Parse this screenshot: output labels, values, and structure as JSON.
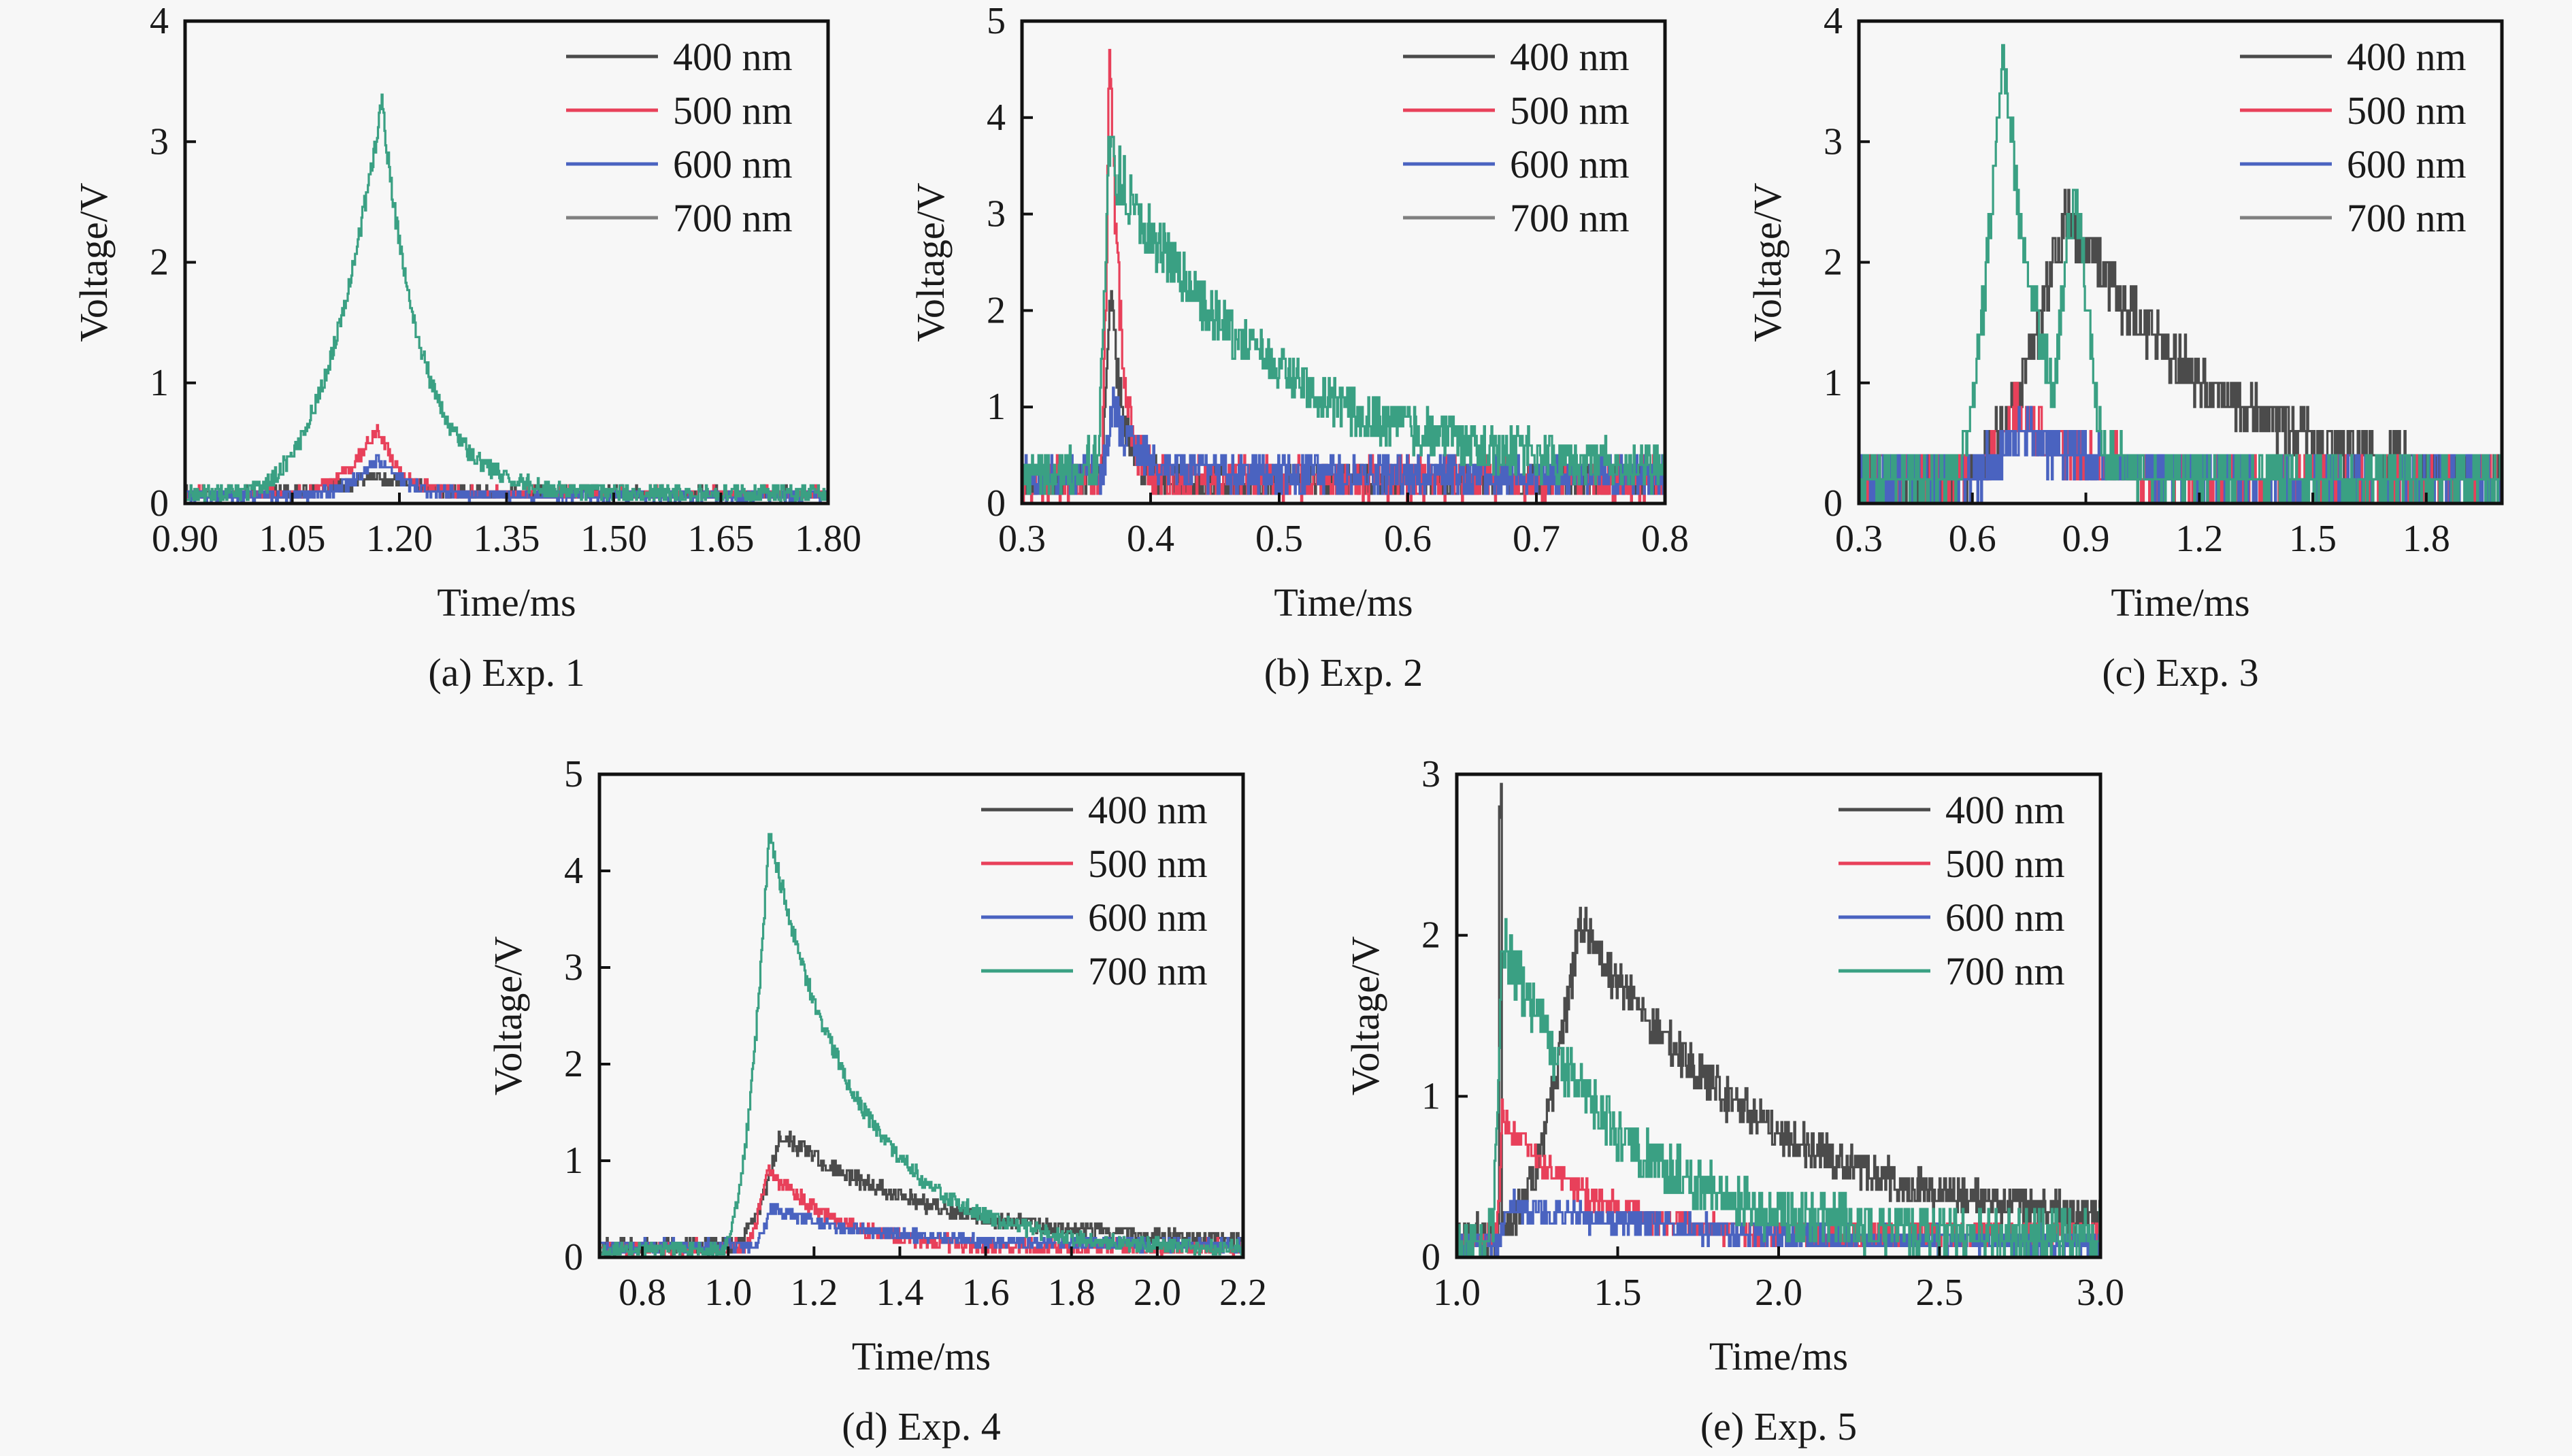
{
  "figure": {
    "background": "#f7f7f7",
    "series_colors": {
      "400 nm": "#4b4b4b",
      "500 nm": "#e8405a",
      "600 nm": "#4a63c0",
      "700 nm": "#3aa083"
    },
    "legend_700_color_override_panels_abc": "#808080"
  },
  "chart_data": [
    {
      "id": "a",
      "type": "line",
      "caption": "(a) Exp. 1",
      "title": "",
      "xlabel": "Time/ms",
      "ylabel": "Voltage/V",
      "xlim": [
        0.9,
        1.8
      ],
      "ylim": [
        0,
        4
      ],
      "xticks": [
        "0.90",
        "1.05",
        "1.20",
        "1.35",
        "1.50",
        "1.65",
        "1.80"
      ],
      "xtick_values": [
        0.9,
        1.05,
        1.2,
        1.35,
        1.5,
        1.65,
        1.8
      ],
      "yticks": [
        "0",
        "1",
        "2",
        "3",
        "4"
      ],
      "ytick_values": [
        0,
        1,
        2,
        3,
        4
      ],
      "legend": {
        "position": "top-right",
        "entries": [
          {
            "label": "400 nm",
            "color": "#4b4b4b"
          },
          {
            "label": "500 nm",
            "color": "#e8405a"
          },
          {
            "label": "600 nm",
            "color": "#4a63c0"
          },
          {
            "label": "700 nm",
            "color": "#808080"
          }
        ]
      },
      "series": [
        {
          "name": "400 nm",
          "color": "#4b4b4b",
          "peak_time": 1.17,
          "peak_value": 0.15,
          "onset": 0.97,
          "rise": 0.05,
          "decay": 0.06,
          "baseline": 0.08,
          "noise": 0.05,
          "step": 0.05
        },
        {
          "name": "500 nm",
          "color": "#e8405a",
          "peak_time": 1.17,
          "peak_value": 0.55,
          "onset": 1.05,
          "rise": 0.03,
          "decay": 0.03,
          "baseline": 0.08,
          "noise": 0.05,
          "step": 0.05
        },
        {
          "name": "600 nm",
          "color": "#4a63c0",
          "peak_time": 1.17,
          "peak_value": 0.3,
          "onset": 1.05,
          "rise": 0.03,
          "decay": 0.04,
          "baseline": 0.06,
          "noise": 0.05,
          "step": 0.05
        },
        {
          "name": "700 nm",
          "color": "#3aa083",
          "peak_time": 1.175,
          "peak_value": 3.25,
          "onset": 0.96,
          "rise": 0.045,
          "decay": 0.055,
          "baseline": 0.08,
          "noise": 0.07,
          "step": 0.03
        }
      ]
    },
    {
      "id": "b",
      "type": "line",
      "caption": "(b) Exp. 2",
      "title": "",
      "xlabel": "Time/ms",
      "ylabel": "Voltage/V",
      "xlim": [
        0.3,
        0.8
      ],
      "ylim": [
        0,
        5
      ],
      "xticks": [
        "0.3",
        "0.4",
        "0.5",
        "0.6",
        "0.7",
        "0.8"
      ],
      "xtick_values": [
        0.3,
        0.4,
        0.5,
        0.6,
        0.7,
        0.8
      ],
      "yticks": [
        "0",
        "1",
        "2",
        "3",
        "4",
        "5"
      ],
      "ytick_values": [
        0,
        1,
        2,
        3,
        4,
        5
      ],
      "legend": {
        "position": "top-right",
        "entries": [
          {
            "label": "400 nm",
            "color": "#4b4b4b"
          },
          {
            "label": "500 nm",
            "color": "#e8405a"
          },
          {
            "label": "600 nm",
            "color": "#4a63c0"
          },
          {
            "label": "700 nm",
            "color": "#808080"
          }
        ]
      },
      "series": [
        {
          "name": "400 nm",
          "color": "#4b4b4b",
          "peak_time": 0.368,
          "peak_value": 2.0,
          "onset": 0.36,
          "rise": 0.004,
          "decay": 0.01,
          "baseline": 0.25,
          "noise": 0.2,
          "step": 0.1
        },
        {
          "name": "500 nm",
          "color": "#e8405a",
          "peak_time": 0.368,
          "peak_value": 4.7,
          "onset": 0.36,
          "rise": 0.003,
          "decay": 0.008,
          "baseline": 0.25,
          "noise": 0.22,
          "step": 0.1
        },
        {
          "name": "600 nm",
          "color": "#4a63c0",
          "peak_time": 0.37,
          "peak_value": 0.7,
          "onset": 0.36,
          "rise": 0.004,
          "decay": 0.02,
          "baseline": 0.3,
          "noise": 0.2,
          "step": 0.1
        },
        {
          "name": "700 nm",
          "color": "#3aa083",
          "peak_time": 0.367,
          "peak_value": 3.3,
          "onset": 0.355,
          "rise": 0.004,
          "decay": 0.12,
          "baseline": 0.3,
          "noise": 0.25,
          "step": 0.1,
          "secondary": {
            "time": 0.43,
            "value": 1.35,
            "width": 0.05
          }
        }
      ]
    },
    {
      "id": "c",
      "type": "line",
      "caption": "(c) Exp. 3",
      "title": "",
      "xlabel": "Time/ms",
      "ylabel": "Voltage/V",
      "xlim": [
        0.3,
        2.0
      ],
      "ylim": [
        0,
        4
      ],
      "xticks": [
        "0.3",
        "0.6",
        "0.9",
        "1.2",
        "1.5",
        "1.8"
      ],
      "xtick_values": [
        0.3,
        0.6,
        0.9,
        1.2,
        1.5,
        1.8
      ],
      "yticks": [
        "0",
        "1",
        "2",
        "3",
        "4"
      ],
      "ytick_values": [
        0,
        1,
        2,
        3,
        4
      ],
      "legend": {
        "position": "top-right",
        "entries": [
          {
            "label": "400 nm",
            "color": "#4b4b4b"
          },
          {
            "label": "500 nm",
            "color": "#e8405a"
          },
          {
            "label": "600 nm",
            "color": "#4a63c0"
          },
          {
            "label": "700 nm",
            "color": "#808080"
          }
        ]
      },
      "series": [
        {
          "name": "400 nm",
          "color": "#4b4b4b",
          "peak_time": 0.85,
          "peak_value": 2.25,
          "onset": 0.56,
          "rise": 0.12,
          "decay": 0.35,
          "baseline": 0.2,
          "noise": 0.2,
          "step": 0.2
        },
        {
          "name": "500 nm",
          "color": "#e8405a",
          "peak_time": 0.72,
          "peak_value": 0.65,
          "onset": 0.55,
          "rise": 0.06,
          "decay": 0.15,
          "baseline": 0.2,
          "noise": 0.2,
          "step": 0.2
        },
        {
          "name": "600 nm",
          "color": "#4a63c0",
          "peak_time": 0.72,
          "peak_value": 0.4,
          "onset": 0.55,
          "rise": 0.06,
          "decay": 0.2,
          "baseline": 0.2,
          "noise": 0.2,
          "step": 0.2
        },
        {
          "name": "700 nm",
          "color": "#3aa083",
          "peak_time": 0.68,
          "peak_value": 3.6,
          "onset": 0.54,
          "rise": 0.05,
          "decay": 0.09,
          "baseline": 0.2,
          "noise": 0.2,
          "step": 0.2,
          "secondary": {
            "time": 0.87,
            "value": 2.3,
            "width": 0.05
          }
        }
      ]
    },
    {
      "id": "d",
      "type": "line",
      "caption": "(d) Exp. 4",
      "title": "",
      "xlabel": "Time/ms",
      "ylabel": "Voltage/V",
      "xlim": [
        0.7,
        2.2
      ],
      "ylim": [
        0,
        5
      ],
      "xticks": [
        "0.8",
        "1.0",
        "1.2",
        "1.4",
        "1.6",
        "1.8",
        "2.0",
        "2.2"
      ],
      "xtick_values": [
        0.8,
        1.0,
        1.2,
        1.4,
        1.6,
        1.8,
        2.0,
        2.2
      ],
      "yticks": [
        "0",
        "1",
        "2",
        "3",
        "4",
        "5"
      ],
      "ytick_values": [
        0,
        1,
        2,
        3,
        4,
        5
      ],
      "legend": {
        "position": "top-right",
        "entries": [
          {
            "label": "400 nm",
            "color": "#4b4b4b"
          },
          {
            "label": "500 nm",
            "color": "#e8405a"
          },
          {
            "label": "600 nm",
            "color": "#4a63c0"
          },
          {
            "label": "700 nm",
            "color": "#3aa083"
          }
        ]
      },
      "series": [
        {
          "name": "400 nm",
          "color": "#4b4b4b",
          "peak_time": 1.12,
          "peak_value": 1.15,
          "onset": 1.0,
          "rise": 0.04,
          "decay": 0.35,
          "baseline": 0.12,
          "noise": 0.08,
          "step": 0.05
        },
        {
          "name": "500 nm",
          "color": "#e8405a",
          "peak_time": 1.09,
          "peak_value": 0.85,
          "onset": 1.03,
          "rise": 0.02,
          "decay": 0.15,
          "baseline": 0.1,
          "noise": 0.08,
          "step": 0.05
        },
        {
          "name": "600 nm",
          "color": "#4a63c0",
          "peak_time": 1.1,
          "peak_value": 0.38,
          "onset": 1.05,
          "rise": 0.02,
          "decay": 0.25,
          "baseline": 0.12,
          "noise": 0.06,
          "step": 0.05
        },
        {
          "name": "700 nm",
          "color": "#3aa083",
          "peak_time": 1.095,
          "peak_value": 4.35,
          "onset": 0.98,
          "rise": 0.035,
          "decay": 0.2,
          "baseline": 0.08,
          "noise": 0.08,
          "step": 0.03,
          "secondary": {
            "time": 1.3,
            "value": 0.6,
            "width": 0.06
          }
        }
      ]
    },
    {
      "id": "e",
      "type": "line",
      "caption": "(e) Exp. 5",
      "title": "",
      "xlabel": "Time/ms",
      "ylabel": "Voltage/V",
      "xlim": [
        1.0,
        3.0
      ],
      "ylim": [
        0,
        3
      ],
      "xticks": [
        "1.0",
        "1.5",
        "2.0",
        "2.5",
        "3.0"
      ],
      "xtick_values": [
        1.0,
        1.5,
        2.0,
        2.5,
        3.0
      ],
      "yticks": [
        "0",
        "1",
        "2",
        "3"
      ],
      "ytick_values": [
        0,
        1,
        2,
        3
      ],
      "legend": {
        "position": "top-right",
        "entries": [
          {
            "label": "400 nm",
            "color": "#4b4b4b"
          },
          {
            "label": "500 nm",
            "color": "#e8405a"
          },
          {
            "label": "600 nm",
            "color": "#4a63c0"
          },
          {
            "label": "700 nm",
            "color": "#3aa083"
          }
        ]
      },
      "series": [
        {
          "name": "400 nm",
          "color": "#4b4b4b",
          "peak_time": 1.38,
          "peak_value": 1.95,
          "onset": 1.12,
          "rise": 0.08,
          "decay": 0.55,
          "baseline": 0.15,
          "noise": 0.12,
          "step": 0.07,
          "spike": {
            "time": 1.135,
            "value": 2.65
          }
        },
        {
          "name": "500 nm",
          "color": "#e8405a",
          "peak_time": 1.14,
          "peak_value": 0.75,
          "onset": 1.12,
          "rise": 0.01,
          "decay": 0.25,
          "baseline": 0.12,
          "noise": 0.08,
          "step": 0.07
        },
        {
          "name": "600 nm",
          "color": "#4a63c0",
          "peak_time": 1.15,
          "peak_value": 0.25,
          "onset": 1.12,
          "rise": 0.01,
          "decay": 0.6,
          "baseline": 0.08,
          "noise": 0.08,
          "step": 0.07
        },
        {
          "name": "700 nm",
          "color": "#3aa083",
          "peak_time": 1.14,
          "peak_value": 1.85,
          "onset": 1.1,
          "rise": 0.015,
          "decay": 0.35,
          "baseline": 0.12,
          "noise": 0.15,
          "step": 0.1
        }
      ]
    }
  ]
}
